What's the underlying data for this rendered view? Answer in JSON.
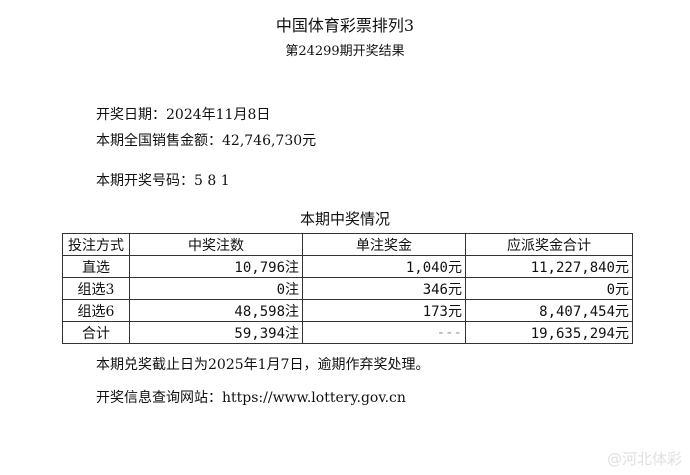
{
  "title": "中国体育彩票排列3",
  "subtitle": "第24299期开奖结果",
  "draw_date": "开奖日期：2024年11月8日",
  "sales": "本期全国销售金额：42,746,730元",
  "numbers": "本期开奖号码：5 8 1",
  "section": "本期中奖情况",
  "table": {
    "headers": [
      "投注方式",
      "中奖注数",
      "单注奖金",
      "应派奖金合计"
    ],
    "rows": [
      [
        "直选",
        "10,796注",
        "1,040元",
        "11,227,840元"
      ],
      [
        "组选3",
        "0注",
        "346元",
        "0元"
      ],
      [
        "组选6",
        "48,598注",
        "173元",
        "8,407,454元"
      ],
      [
        "合计",
        "59,394注",
        "---",
        "19,635,294元"
      ]
    ]
  },
  "deadline": "本期兑奖截止日为2025年1月7日，逾期作弃奖处理。",
  "website": "开奖信息查询网站：https://www.lottery.gov.cn",
  "watermark": "@河北体彩"
}
